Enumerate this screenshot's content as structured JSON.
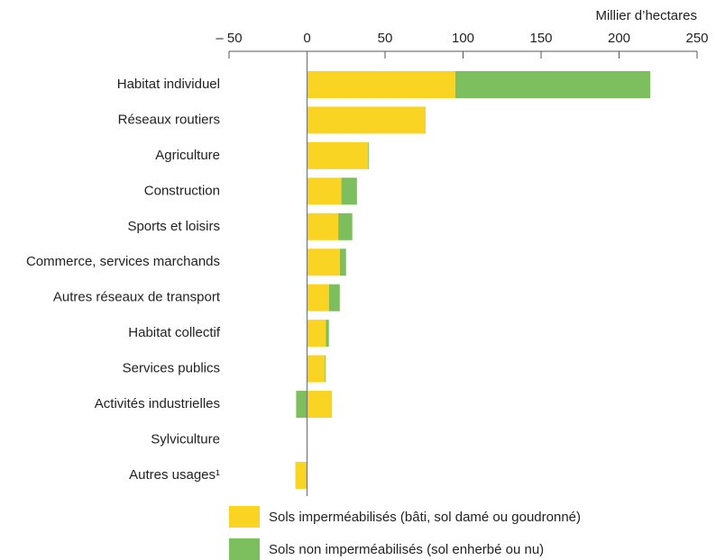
{
  "chart_data": {
    "type": "bar",
    "orientation": "horizontal",
    "stacked": true,
    "x_label": "Millier d’hectares",
    "categories": [
      "Habitat individuel",
      "Réseaux routiers",
      "Agriculture",
      "Construction",
      "Sports et loisirs",
      "Commerce, services marchands",
      "Autres réseaux de transport",
      "Habitat collectif",
      "Services publics",
      "Activités industrielles",
      "Sylviculture",
      "Autres usages¹"
    ],
    "series": [
      {
        "name": "Sols imperméabilisés (bâti, sol damé ou goudronné)",
        "color": "#f9d423",
        "values": [
          95,
          76,
          39,
          22,
          20,
          21,
          14,
          12,
          11.5,
          16,
          0,
          -7.5
        ]
      },
      {
        "name": "Sols non imperméabilisés (sol enherbé ou nu)",
        "color": "#7dbf5e",
        "values": [
          125,
          0,
          0.5,
          10,
          9,
          4,
          7,
          2,
          0.5,
          -7,
          0,
          0
        ]
      }
    ],
    "xlim": [
      -50,
      250
    ],
    "xticks": [
      {
        "value": -50,
        "label": "– 50"
      },
      0,
      50,
      100,
      150,
      200,
      250
    ]
  }
}
